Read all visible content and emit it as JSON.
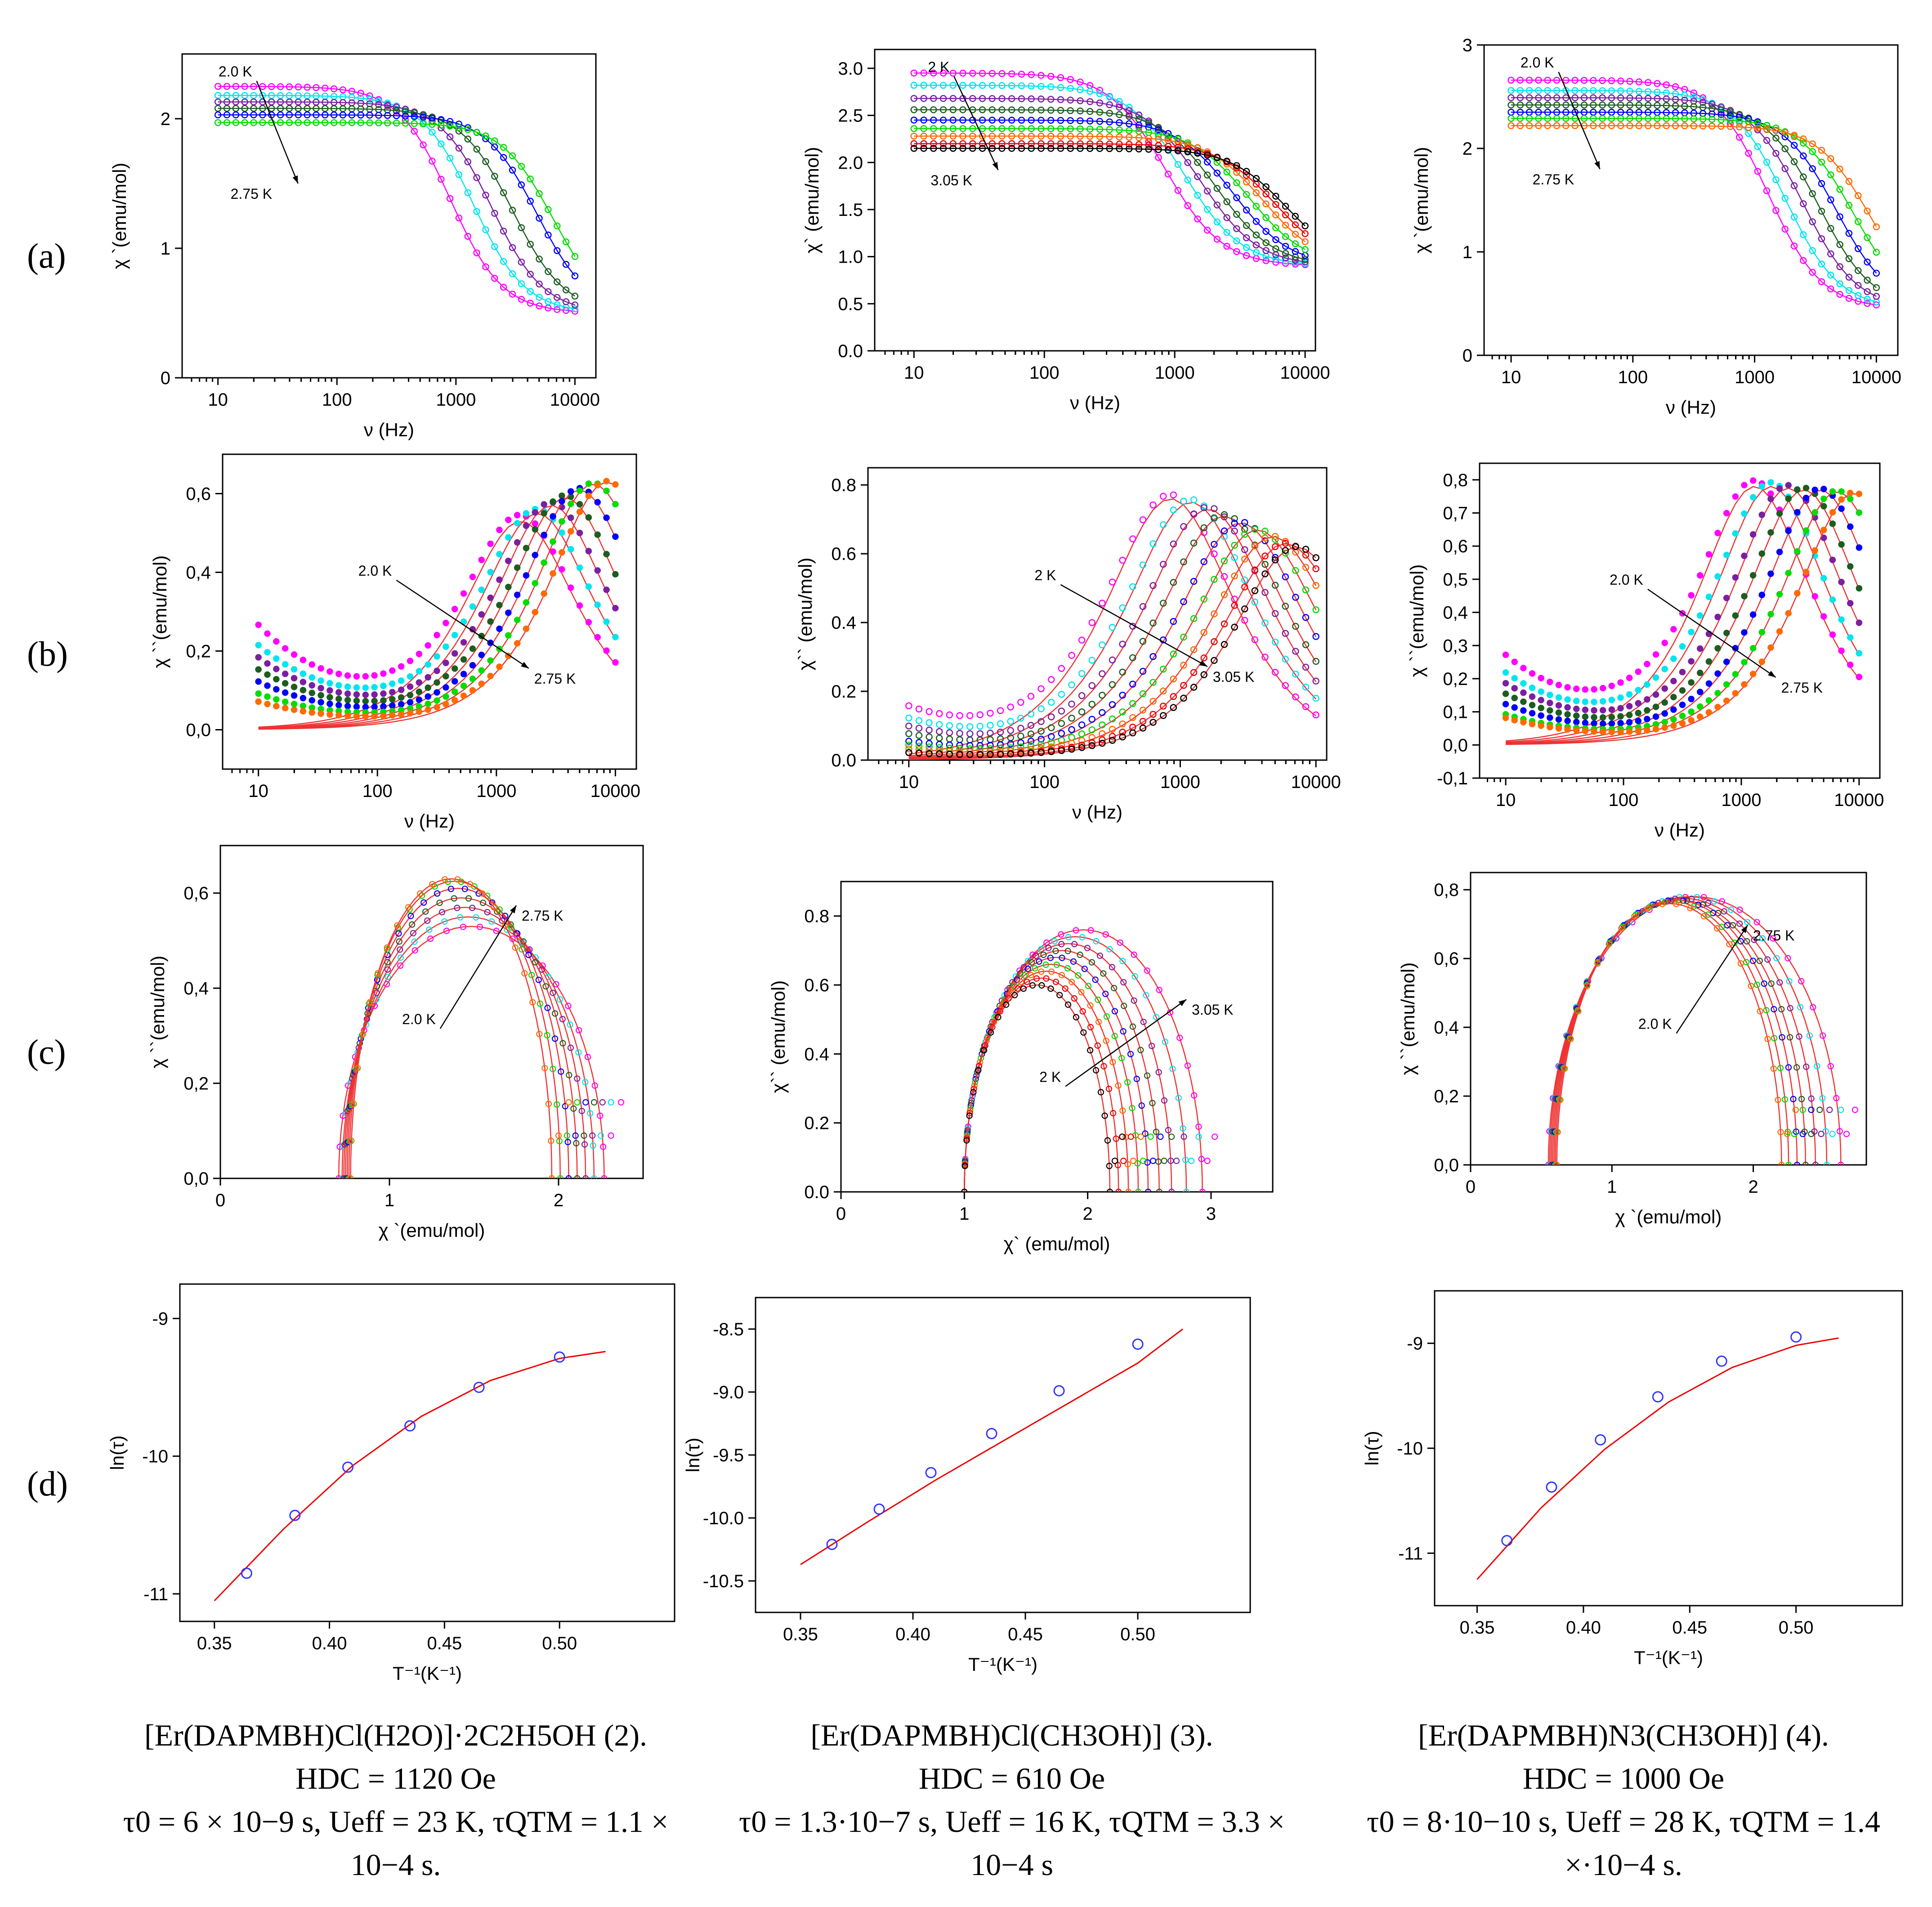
{
  "figure": {
    "row_labels": [
      "(a)",
      "(b)",
      "(c)",
      "(d)"
    ],
    "captions": [
      {
        "line1": "[Er(DAPMBH)Cl(H2O)]·2C2H5OH (2).",
        "line2": "HDC = 1120 Oe",
        "line3": "τ0 = 6 × 10−9 s, Ueff = 23 K, τQTM = 1.1 ×",
        "line4": "10−4 s."
      },
      {
        "line1": "[Er(DAPMBH)Cl(CH3OH)] (3).",
        "line2": "HDC = 610 Oe",
        "line3": "τ0 = 1.3·10−7 s, Ueff = 16 K, τQTM = 3.3 ×",
        "line4": "10−4 s"
      },
      {
        "line1": "[Er(DAPMBH)N3(CH3OH)] (4).",
        "line2": "HDC = 1000 Oe",
        "line3": "τ0 = 8·10−10 s, Ueff = 28 K, τQTM = 1.4",
        "line4": "×·10−4 s."
      }
    ]
  },
  "series_colors": [
    "#ff00ff",
    "#00e5ee",
    "#7b1fa2",
    "#1b5e20",
    "#0000ff",
    "#00dd00",
    "#ff6a00",
    "#ee0000",
    "#000000",
    "#ff66cc"
  ],
  "chart_data": [
    {
      "id": "a1",
      "type": "line",
      "xscale": "log",
      "xlim": [
        5,
        15000
      ],
      "ylim": [
        0,
        2.5
      ],
      "xticks": [
        10,
        100,
        1000,
        10000
      ],
      "yticks": [
        0,
        1,
        2
      ],
      "xlabel": "ν (Hz)",
      "ylabel": "χ `(emu/mol)",
      "decimal": ".",
      "model": "real",
      "chi_s": 0.5,
      "chi_t": [
        2.25,
        2.18,
        2.13,
        2.08,
        2.03,
        1.97
      ],
      "f_peak": [
        900,
        1400,
        2000,
        3000,
        4800,
        6500
      ],
      "ann_start": "2.0 K",
      "ann_end": "2.75 K"
    },
    {
      "id": "a2",
      "type": "line",
      "xscale": "log",
      "xlim": [
        5,
        12000
      ],
      "ylim": [
        0,
        3.2
      ],
      "xticks": [
        10,
        100,
        1000,
        10000
      ],
      "yticks": [
        0,
        0.5,
        1,
        1.5,
        2,
        2.5,
        3
      ],
      "xlabel": "ν (Hz)",
      "ylabel": "χ` (emu/mol)",
      "decimal": ".",
      "model": "real",
      "chi_s": 0.9,
      "chi_t": [
        2.95,
        2.82,
        2.68,
        2.56,
        2.45,
        2.36,
        2.28,
        2.2,
        2.15
      ],
      "f_peak": [
        850,
        1200,
        1600,
        2100,
        2800,
        3700,
        4800,
        6000,
        7200
      ],
      "ann_start": "2 K",
      "ann_end": "3.05 K"
    },
    {
      "id": "a3",
      "type": "line",
      "xscale": "log",
      "xlim": [
        6,
        15000
      ],
      "ylim": [
        0,
        3
      ],
      "xticks": [
        10,
        100,
        1000,
        10000
      ],
      "yticks": [
        0,
        1,
        2,
        3
      ],
      "xlabel": "ν (Hz)",
      "ylabel": "χ `(emu/mol)",
      "decimal": ".",
      "model": "real",
      "chi_s": 0.45,
      "chi_t": [
        2.66,
        2.56,
        2.49,
        2.42,
        2.35,
        2.29,
        2.22
      ],
      "f_peak": [
        1300,
        1800,
        2500,
        3400,
        4700,
        6500,
        9000
      ],
      "ann_start": "2.0 K",
      "ann_end": "2.75 K"
    },
    {
      "id": "b1",
      "type": "line",
      "xscale": "log",
      "xlim": [
        5,
        15000
      ],
      "ylim": [
        -0.1,
        0.7
      ],
      "xticks": [
        10,
        100,
        1000,
        10000
      ],
      "yticks": [
        0,
        0.2,
        0.4,
        0.6
      ],
      "xlabel": "ν (Hz)",
      "ylabel": "χ ``(emu/mol)",
      "decimal": ",",
      "model": "imag",
      "peaks": [
        0.53,
        0.55,
        0.57,
        0.59,
        0.61,
        0.625,
        0.63
      ],
      "f_peak": [
        1600,
        2200,
        2900,
        3800,
        5000,
        6500,
        8500
      ],
      "low_f": [
        0.26,
        0.21,
        0.18,
        0.15,
        0.12,
        0.09,
        0.07
      ],
      "ann_start": "2.0 K",
      "ann_end": "2.75 K"
    },
    {
      "id": "b2",
      "type": "line",
      "xscale": "log",
      "xlim": [
        5,
        12000
      ],
      "ylim": [
        0,
        0.85
      ],
      "xticks": [
        10,
        100,
        1000,
        10000
      ],
      "yticks": [
        0,
        0.2,
        0.4,
        0.6,
        0.8
      ],
      "xlabel": "ν (Hz)",
      "ylabel": "χ`` (emu/mol)",
      "decimal": ".",
      "model": "imag",
      "peaks": [
        0.76,
        0.75,
        0.73,
        0.71,
        0.69,
        0.67,
        0.65,
        0.63,
        0.62
      ],
      "f_peak": [
        850,
        1200,
        1600,
        2100,
        2800,
        3700,
        4800,
        6000,
        7200
      ],
      "low_f": [
        0.14,
        0.11,
        0.09,
        0.07,
        0.05,
        0.04,
        0.03,
        0.02,
        0.02
      ],
      "ann_start": "2 K",
      "ann_end": "3.05 K"
    },
    {
      "id": "b3",
      "type": "line",
      "xscale": "log",
      "xlim": [
        6,
        15000
      ],
      "ylim": [
        -0.1,
        0.85
      ],
      "xticks": [
        10,
        100,
        1000,
        10000
      ],
      "yticks": [
        -0.1,
        0,
        0.1,
        0.2,
        0.3,
        0.4,
        0.5,
        0.6,
        0.7,
        0.8
      ],
      "xlabel": "ν (Hz)",
      "ylabel": "χ ``(emu/mol)",
      "decimal": ",",
      "model": "imag",
      "peaks": [
        0.78,
        0.78,
        0.775,
        0.77,
        0.77,
        0.765,
        0.76
      ],
      "f_peak": [
        1300,
        1800,
        2500,
        3400,
        4700,
        6500,
        9000
      ],
      "low_f": [
        0.26,
        0.21,
        0.18,
        0.15,
        0.12,
        0.09,
        0.08
      ],
      "ann_start": "2.0 K",
      "ann_end": "2.75 K"
    },
    {
      "id": "c1",
      "type": "scatter",
      "xscale": "lin",
      "xlim": [
        0,
        2.5
      ],
      "ylim": [
        0,
        0.7
      ],
      "xticks": [
        0,
        1,
        2
      ],
      "yticks": [
        0,
        0.2,
        0.4,
        0.6
      ],
      "xlabel": "χ `(emu/mol)",
      "ylabel": "χ ``(emu/mol)",
      "decimal": ",",
      "model": "cole",
      "arcs": [
        {
          "a": 0.7,
          "b": 2.27,
          "h": 0.53
        },
        {
          "a": 0.72,
          "b": 2.21,
          "h": 0.55
        },
        {
          "a": 0.73,
          "b": 2.16,
          "h": 0.57
        },
        {
          "a": 0.74,
          "b": 2.11,
          "h": 0.59
        },
        {
          "a": 0.75,
          "b": 2.06,
          "h": 0.61
        },
        {
          "a": 0.76,
          "b": 2.01,
          "h": 0.625
        },
        {
          "a": 0.77,
          "b": 1.96,
          "h": 0.63
        }
      ],
      "ann_start": "2.0 K",
      "ann_end": "2.75 K"
    },
    {
      "id": "c2",
      "type": "scatter",
      "xscale": "lin",
      "xlim": [
        0,
        3.5
      ],
      "ylim": [
        0,
        0.9
      ],
      "xticks": [
        0,
        1,
        2,
        3
      ],
      "yticks": [
        0,
        0.2,
        0.4,
        0.6,
        0.8
      ],
      "xlabel": "χ` (emu/mol)",
      "ylabel": "χ`` (emu/mol)",
      "decimal": ".",
      "model": "cole",
      "arcs": [
        {
          "a": 1.0,
          "b": 2.93,
          "h": 0.76
        },
        {
          "a": 1.0,
          "b": 2.8,
          "h": 0.74
        },
        {
          "a": 1.0,
          "b": 2.68,
          "h": 0.72
        },
        {
          "a": 1.0,
          "b": 2.58,
          "h": 0.7
        },
        {
          "a": 1.0,
          "b": 2.49,
          "h": 0.68
        },
        {
          "a": 1.0,
          "b": 2.41,
          "h": 0.66
        },
        {
          "a": 1.0,
          "b": 2.33,
          "h": 0.64
        },
        {
          "a": 1.0,
          "b": 2.25,
          "h": 0.62
        },
        {
          "a": 1.0,
          "b": 2.18,
          "h": 0.6
        }
      ],
      "ann_start": "2 K",
      "ann_end": "3.05 K"
    },
    {
      "id": "c3",
      "type": "scatter",
      "xscale": "lin",
      "xlim": [
        0,
        2.8
      ],
      "ylim": [
        0,
        0.85
      ],
      "xticks": [
        0,
        1,
        2
      ],
      "yticks": [
        0,
        0.2,
        0.4,
        0.6,
        0.8
      ],
      "xlabel": "χ `(emu/mol)",
      "ylabel": "χ ``(emu/mol)",
      "decimal": ",",
      "model": "cole",
      "arcs": [
        {
          "a": 0.55,
          "b": 2.62,
          "h": 0.78
        },
        {
          "a": 0.56,
          "b": 2.52,
          "h": 0.78
        },
        {
          "a": 0.57,
          "b": 2.44,
          "h": 0.775
        },
        {
          "a": 0.58,
          "b": 2.37,
          "h": 0.77
        },
        {
          "a": 0.59,
          "b": 2.31,
          "h": 0.77
        },
        {
          "a": 0.6,
          "b": 2.25,
          "h": 0.765
        },
        {
          "a": 0.61,
          "b": 2.2,
          "h": 0.76
        }
      ],
      "ann_start": "2.0 K",
      "ann_end": "2.75 K"
    },
    {
      "id": "d1",
      "type": "scatter",
      "xscale": "lin",
      "xlim": [
        0.335,
        0.55
      ],
      "ylim": [
        -11.2,
        -8.75
      ],
      "xticks": [
        0.35,
        0.4,
        0.45,
        0.5
      ],
      "yticks": [
        -11,
        -10,
        -9
      ],
      "xlabel": "T⁻¹(K⁻¹)",
      "ylabel": "ln(τ)",
      "decimal": ".",
      "model": "arrhenius",
      "x": [
        0.364,
        0.385,
        0.408,
        0.435,
        0.465,
        0.5
      ],
      "y": [
        -10.85,
        -10.43,
        -10.08,
        -9.78,
        -9.5,
        -9.28
      ],
      "fit_x": [
        0.35,
        0.38,
        0.41,
        0.44,
        0.47,
        0.5,
        0.52
      ],
      "fit_y": [
        -11.05,
        -10.53,
        -10.07,
        -9.71,
        -9.45,
        -9.29,
        -9.24
      ]
    },
    {
      "id": "d2",
      "type": "scatter",
      "xscale": "lin",
      "xlim": [
        0.33,
        0.55
      ],
      "ylim": [
        -10.75,
        -8.25
      ],
      "xticks": [
        0.35,
        0.4,
        0.45,
        0.5
      ],
      "yticks": [
        -10.5,
        -10,
        -9.5,
        -9,
        -8.5
      ],
      "xlabel": "T⁻¹(K⁻¹)",
      "ylabel": "ln(τ)",
      "decimal": ".",
      "model": "arrhenius",
      "x": [
        0.364,
        0.385,
        0.408,
        0.435,
        0.465,
        0.5
      ],
      "y": [
        -10.21,
        -9.93,
        -9.64,
        -9.33,
        -8.99,
        -8.62
      ],
      "fit_x": [
        0.35,
        0.38,
        0.41,
        0.44,
        0.47,
        0.5,
        0.52
      ],
      "fit_y": [
        -10.37,
        -10.03,
        -9.7,
        -9.39,
        -9.08,
        -8.77,
        -8.5
      ]
    },
    {
      "id": "d3",
      "type": "scatter",
      "xscale": "lin",
      "xlim": [
        0.33,
        0.55
      ],
      "ylim": [
        -11.5,
        -8.5
      ],
      "xticks": [
        0.35,
        0.4,
        0.45,
        0.5
      ],
      "yticks": [
        -11,
        -10,
        -9
      ],
      "xlabel": "T⁻¹(K⁻¹)",
      "ylabel": "ln(τ)",
      "decimal": ".",
      "model": "arrhenius",
      "x": [
        0.364,
        0.385,
        0.408,
        0.435,
        0.465,
        0.5
      ],
      "y": [
        -10.88,
        -10.37,
        -9.92,
        -9.51,
        -9.17,
        -8.94
      ],
      "fit_x": [
        0.35,
        0.38,
        0.41,
        0.44,
        0.47,
        0.5,
        0.52
      ],
      "fit_y": [
        -11.25,
        -10.57,
        -10.01,
        -9.56,
        -9.23,
        -9.02,
        -8.95
      ]
    }
  ]
}
